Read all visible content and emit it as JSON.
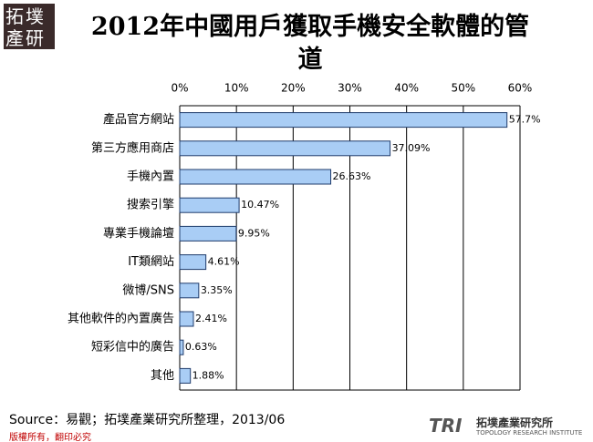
{
  "chart_data": {
    "type": "hbar",
    "title": "2012年中國用戶獲取手機安全軟體的管道",
    "categories": [
      "產品官方網站",
      "第三方應用商店",
      "手機內置",
      "搜索引擎",
      "專業手機論壇",
      "IT類網站",
      "微博/SNS",
      "其他軟件的內置廣告",
      "短彩信中的廣告",
      "其他"
    ],
    "values": [
      57.7,
      37.09,
      26.63,
      10.47,
      9.95,
      4.61,
      3.35,
      2.41,
      0.63,
      1.88
    ],
    "value_labels": [
      "57.7%",
      "37.09%",
      "26.63%",
      "10.47%",
      "9.95%",
      "4.61%",
      "3.35%",
      "2.41%",
      "0.63%",
      "1.88%"
    ],
    "color": "#a9cdf5",
    "xlim": [
      0,
      60
    ],
    "xticks": [
      {
        "value": 0,
        "label": "0%"
      },
      {
        "value": 10,
        "label": "10%"
      },
      {
        "value": 20,
        "label": "20%"
      },
      {
        "value": 30,
        "label": "30%"
      },
      {
        "value": 40,
        "label": "40%"
      },
      {
        "value": 50,
        "label": "50%"
      },
      {
        "value": 60,
        "label": "60%"
      }
    ],
    "grid": true
  },
  "source": "Source：易觀；拓墣產業研究所整理，2013/06",
  "footer": "版權所有，翻印必究",
  "logo": {
    "text": "拓墣產研"
  },
  "brand": {
    "mark": "TRI",
    "name": "拓墣產業研究所",
    "english": "TOPOLOGY RESEARCH INSTITUTE"
  }
}
